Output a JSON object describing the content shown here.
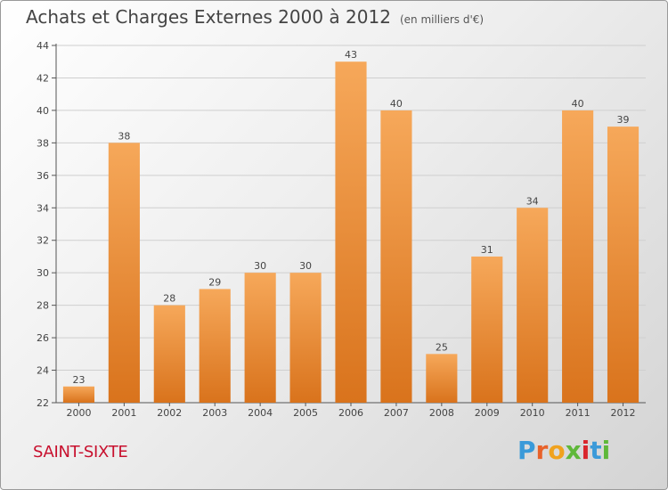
{
  "title": "Achats et Charges Externes 2000 à 2012",
  "subtitle": "(en milliers d'€)",
  "place": "SAINT-SIXTE",
  "logo": {
    "letters": [
      "P",
      "r",
      "o",
      "x",
      "i",
      "t",
      "i"
    ],
    "colors": [
      "#3a9ad9",
      "#e8622a",
      "#f0a21e",
      "#5fb83a",
      "#d9262c",
      "#3a9ad9",
      "#5fb83a"
    ]
  },
  "colors": {
    "bar_light": "#f6a85a",
    "bar_dark": "#d9731c",
    "grid": "#cfcfcf"
  },
  "chart_data": {
    "type": "bar",
    "categories": [
      "2000",
      "2001",
      "2002",
      "2003",
      "2004",
      "2005",
      "2006",
      "2007",
      "2008",
      "2009",
      "2010",
      "2011",
      "2012"
    ],
    "values": [
      23,
      38,
      28,
      29,
      30,
      30,
      43,
      40,
      25,
      31,
      34,
      40,
      39
    ],
    "data_labels": [
      "23",
      "38",
      "28",
      "29",
      "30",
      "30",
      "43",
      "40",
      "25",
      "31",
      "34",
      "40",
      "39"
    ],
    "ylim": [
      22,
      44
    ],
    "y_ticks": [
      22,
      24,
      26,
      28,
      30,
      32,
      34,
      36,
      38,
      40,
      42,
      44
    ],
    "y_tick_labels": [
      "22",
      "24",
      "26",
      "28",
      "30",
      "32",
      "34",
      "36",
      "38",
      "40",
      "42",
      "44"
    ],
    "grid": true,
    "xlabel": "",
    "ylabel": ""
  }
}
